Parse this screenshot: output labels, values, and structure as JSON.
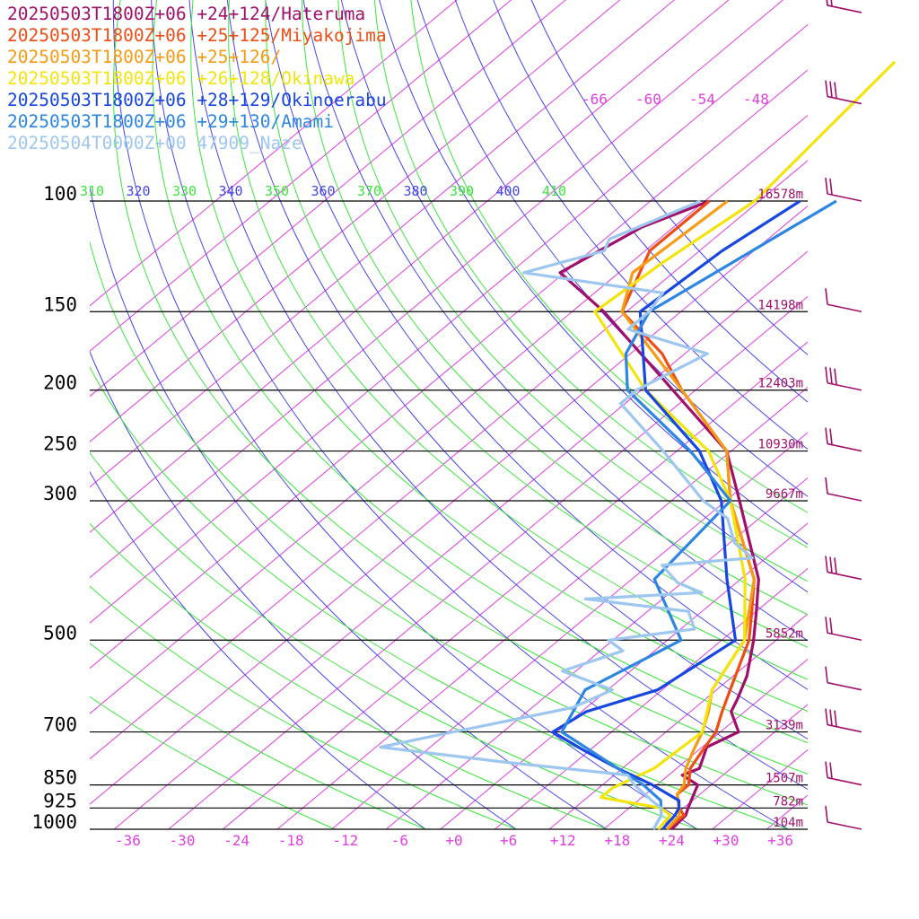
{
  "chart_data": {
    "type": "line",
    "title": "",
    "xlabel": "",
    "ylabel": "",
    "diagram": "skew-T log-p",
    "pressure_levels_hPa": [
      100,
      150,
      200,
      250,
      300,
      500,
      700,
      850,
      925,
      1000
    ],
    "level_height_labels": [
      "16578m",
      "14198m",
      "12403m",
      "10930m",
      "9667m",
      "5852m",
      "3139m",
      "1507m",
      "782m",
      "104m"
    ],
    "temperature_tick_labels": [
      "-36",
      "-30",
      "-24",
      "-18",
      "-12",
      "-6",
      "+0",
      "+6",
      "+12",
      "+18",
      "+24",
      "+30",
      "+36"
    ],
    "upper_temperature_labels": [
      "-66",
      "-60",
      "-54",
      "-48"
    ],
    "theta_labels": [
      "310",
      "320",
      "330",
      "340",
      "350",
      "360",
      "370",
      "380",
      "390",
      "400",
      "410"
    ],
    "xlim": [
      -39,
      39
    ],
    "ylim_hPa": [
      1000,
      100
    ],
    "grid": true,
    "legend_position": "top-left",
    "series": [
      {
        "name": "20250503T1800Z+06 +24+124/Hateruma",
        "color": "#a0106a",
        "points": [
          [
            1000,
            24
          ],
          [
            950,
            23.7
          ],
          [
            925,
            23
          ],
          [
            850,
            21
          ],
          [
            820,
            18
          ],
          [
            800,
            19
          ],
          [
            740,
            17
          ],
          [
            700,
            18.5
          ],
          [
            650,
            15
          ],
          [
            620,
            14
          ],
          [
            570,
            12
          ],
          [
            500,
            8
          ],
          [
            450,
            4.5
          ],
          [
            400,
            0.5
          ],
          [
            300,
            -12
          ],
          [
            250,
            -20
          ],
          [
            200,
            -34
          ],
          [
            150,
            -52
          ],
          [
            130,
            -62
          ],
          [
            110,
            -59
          ],
          [
            100,
            -55
          ],
          [
            50,
            -58
          ],
          [
            20,
            -53
          ]
        ]
      },
      {
        "name": "20250503T1800Z+06 +25+125/Miyakojima",
        "color": "#ee4e16",
        "points": [
          [
            1000,
            23.5
          ],
          [
            950,
            23.5
          ],
          [
            925,
            22
          ],
          [
            880,
            20
          ],
          [
            850,
            20
          ],
          [
            800,
            18
          ],
          [
            750,
            17
          ],
          [
            700,
            16
          ],
          [
            650,
            14
          ],
          [
            600,
            12
          ],
          [
            500,
            7.5
          ],
          [
            450,
            4
          ],
          [
            400,
            0
          ],
          [
            300,
            -13
          ],
          [
            250,
            -20
          ],
          [
            200,
            -33
          ],
          [
            175,
            -40
          ],
          [
            150,
            -50
          ],
          [
            120,
            -55
          ],
          [
            100,
            -55
          ],
          [
            50,
            -56
          ],
          [
            20,
            -52
          ]
        ]
      },
      {
        "name": "20250503T1800Z+06 +25+126/",
        "color": "#f79b14",
        "points": [
          [
            1000,
            23.5
          ],
          [
            950,
            23
          ],
          [
            925,
            22
          ],
          [
            880,
            20
          ],
          [
            850,
            19.5
          ],
          [
            800,
            17.5
          ],
          [
            750,
            16
          ],
          [
            700,
            14.5
          ],
          [
            650,
            12.5
          ],
          [
            600,
            10
          ],
          [
            500,
            7
          ],
          [
            400,
            0
          ],
          [
            300,
            -13
          ],
          [
            250,
            -20
          ],
          [
            200,
            -33
          ],
          [
            150,
            -50
          ],
          [
            130,
            -54
          ],
          [
            100,
            -53
          ],
          [
            50,
            -55
          ],
          [
            20,
            -51
          ]
        ]
      },
      {
        "name": "20250503T1800Z+06 +26+128/Okinawa",
        "color": "#f3e40e",
        "points": [
          [
            1000,
            22.5
          ],
          [
            950,
            22
          ],
          [
            925,
            20
          ],
          [
            890,
            12
          ],
          [
            860,
            12
          ],
          [
            800,
            14
          ],
          [
            700,
            14.5
          ],
          [
            600,
            10
          ],
          [
            500,
            7
          ],
          [
            400,
            -1
          ],
          [
            300,
            -13
          ],
          [
            250,
            -22
          ],
          [
            200,
            -37
          ],
          [
            150,
            -53
          ],
          [
            125,
            -52
          ],
          [
            100,
            -50
          ],
          [
            60,
            -53
          ],
          [
            20,
            -50
          ]
        ]
      },
      {
        "name": "20250503T1800Z+06 +28+129/Okinoerabu",
        "color": "#1846e0",
        "points": [
          [
            1000,
            23
          ],
          [
            950,
            22.5
          ],
          [
            925,
            22
          ],
          [
            900,
            21
          ],
          [
            850,
            16
          ],
          [
            800,
            10
          ],
          [
            750,
            4
          ],
          [
            700,
            -2
          ],
          [
            650,
            -1
          ],
          [
            600,
            4
          ],
          [
            500,
            6
          ],
          [
            400,
            -3
          ],
          [
            300,
            -14
          ],
          [
            250,
            -23
          ],
          [
            200,
            -37
          ],
          [
            150,
            -48
          ],
          [
            120,
            -47
          ],
          [
            100,
            -45
          ],
          [
            60,
            -48
          ],
          [
            20,
            -49
          ]
        ]
      },
      {
        "name": "20250503T1800Z+06 +29+130/Amami",
        "color": "#2e86e3",
        "points": [
          [
            1000,
            22
          ],
          [
            950,
            21
          ],
          [
            925,
            20
          ],
          [
            900,
            19
          ],
          [
            850,
            15
          ],
          [
            800,
            10
          ],
          [
            700,
            -1
          ],
          [
            600,
            -4
          ],
          [
            500,
            0
          ],
          [
            400,
            -11
          ],
          [
            300,
            -13
          ],
          [
            250,
            -24
          ],
          [
            200,
            -39
          ],
          [
            175,
            -44
          ],
          [
            150,
            -47
          ],
          [
            100,
            -41
          ],
          [
            60,
            -46
          ],
          [
            20,
            -48
          ]
        ]
      },
      {
        "name": "20250504T0000Z+00 47909_Naze",
        "color": "#9ec7f0",
        "points": [
          [
            1000,
            22
          ],
          [
            950,
            21
          ],
          [
            925,
            20
          ],
          [
            900,
            18
          ],
          [
            850,
            14
          ],
          [
            820,
            12
          ],
          [
            780,
            -4
          ],
          [
            740,
            -19
          ],
          [
            700,
            -13
          ],
          [
            640,
            -3
          ],
          [
            600,
            -1
          ],
          [
            560,
            -9
          ],
          [
            520,
            -5
          ],
          [
            500,
            -8
          ],
          [
            480,
            0
          ],
          [
            450,
            -3
          ],
          [
            430,
            -16
          ],
          [
            420,
            -4
          ],
          [
            405,
            -8
          ],
          [
            380,
            -12
          ],
          [
            370,
            -3
          ],
          [
            350,
            -7
          ],
          [
            320,
            -11
          ],
          [
            300,
            -16
          ],
          [
            250,
            -27
          ],
          [
            210,
            -38
          ],
          [
            200,
            -38
          ],
          [
            175,
            -35
          ],
          [
            160,
            -47
          ],
          [
            150,
            -47
          ],
          [
            140,
            -48
          ],
          [
            130,
            -66
          ],
          [
            120,
            -60
          ],
          [
            115,
            -61
          ],
          [
            100,
            -56
          ]
        ]
      }
    ]
  },
  "wind_barbs_hPa": [
    1000,
    850,
    700,
    600,
    500,
    400,
    300,
    250,
    200,
    150,
    100,
    70,
    50,
    30
  ]
}
